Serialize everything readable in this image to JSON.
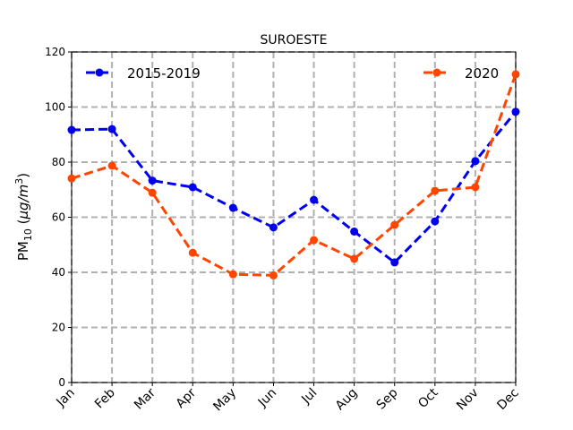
{
  "chart_data": {
    "type": "line",
    "title": "SUROESTE",
    "ylabel": {
      "prefix": "PM",
      "sub": "10",
      "unit_open": " (",
      "mu": "μ",
      "g": "g",
      "slash": "/",
      "m": "m",
      "sup": "3",
      "close": ")"
    },
    "xlabel": "",
    "categories": [
      "Jan",
      "Feb",
      "Mar",
      "Apr",
      "May",
      "Jun",
      "Jul",
      "Aug",
      "Sep",
      "Oct",
      "Nov",
      "Dec"
    ],
    "ylim": [
      0,
      120
    ],
    "yticks": [
      0,
      20,
      40,
      60,
      80,
      100,
      120
    ],
    "grid": true,
    "series": [
      {
        "name": "2015-2019",
        "color": "#0000ee",
        "values": [
          91.7,
          92.0,
          73.3,
          70.9,
          63.4,
          56.3,
          66.3,
          54.8,
          43.6,
          58.5,
          80.4,
          98.3
        ],
        "legend_position": "top-left"
      },
      {
        "name": "2020",
        "color": "#ff4500",
        "values": [
          74.1,
          78.7,
          68.9,
          47.1,
          39.3,
          38.9,
          51.7,
          44.9,
          57.2,
          69.6,
          70.9,
          111.9
        ],
        "legend_position": "top-right"
      }
    ]
  }
}
